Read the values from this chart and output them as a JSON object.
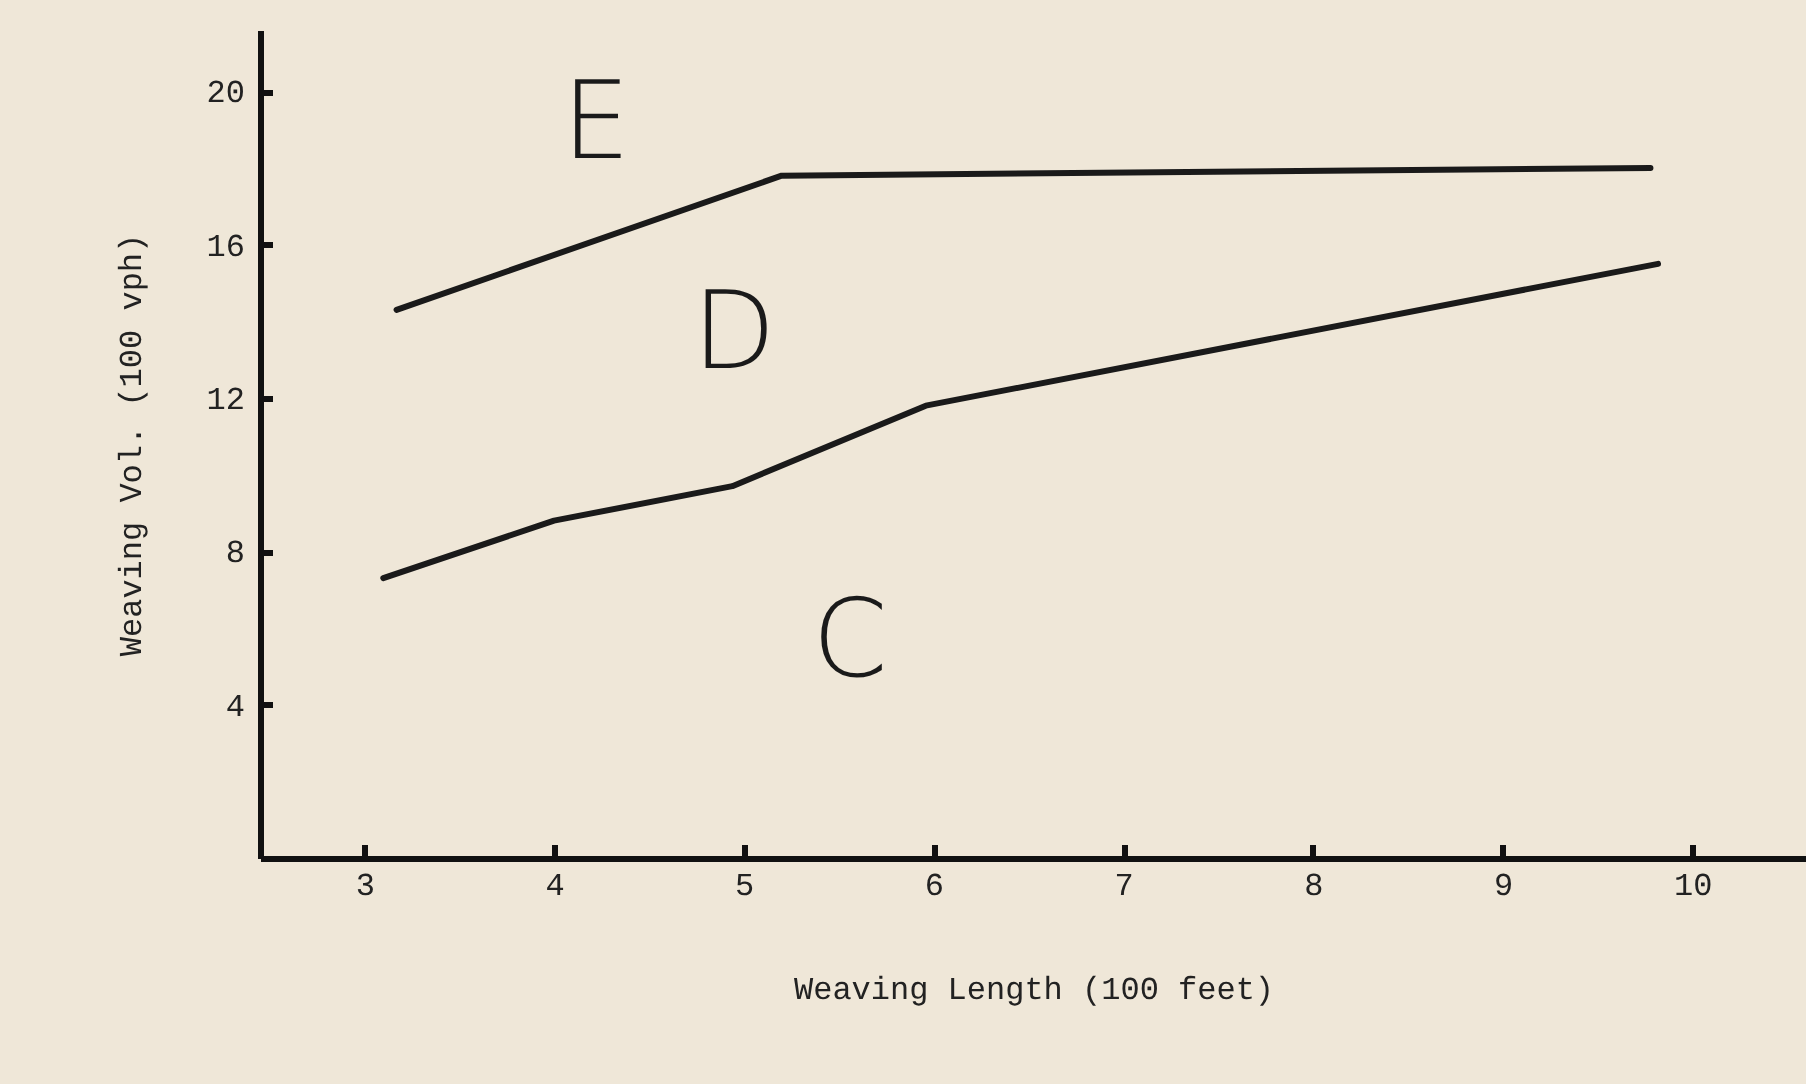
{
  "chart_data": {
    "type": "line",
    "xlabel": "Weaving Length (100 feet)",
    "ylabel": "Weaving Vol. (100 vph)",
    "xlim": [
      2.45,
      10.6
    ],
    "xticks": [
      3,
      4,
      5,
      6,
      7,
      8,
      9,
      10
    ],
    "ylim": [
      0,
      21.6
    ],
    "yticks": [
      4,
      8,
      12,
      16,
      20
    ],
    "grid": false,
    "marker": "none",
    "line_style": "solid",
    "series": [
      {
        "color": "#1a1a1a",
        "x": [
          3.17,
          5.2,
          9.78
        ],
        "values": [
          14.3,
          17.8,
          18.0
        ]
      },
      {
        "color": "#1a1a1a",
        "x": [
          3.1,
          4.0,
          4.94,
          5.96,
          9.82
        ],
        "values": [
          7.3,
          8.8,
          9.7,
          11.8,
          15.5
        ]
      }
    ],
    "annotations": [
      "E",
      "D",
      "C"
    ]
  }
}
